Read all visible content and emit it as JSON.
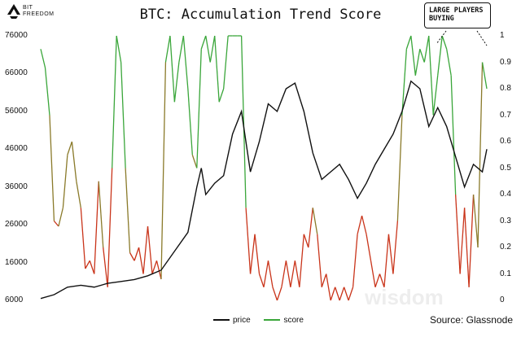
{
  "brand": {
    "logo_icon": "bitfreedom-logo-icon",
    "line1": "BIT",
    "line2": "FREEDOM"
  },
  "annotation": {
    "text": "LARGE PLAYERS BUYING"
  },
  "source": "Source: Glassnode",
  "watermark": "wisdom",
  "colors": {
    "price": "#111111",
    "score_high": "#3aa63a",
    "score_mid": "#8a7a2a",
    "score_low": "#c9341a"
  },
  "chart_data": {
    "type": "line",
    "title": "BTC: Accumulation Trend Score",
    "legend": "bottom-center",
    "grid": false,
    "y_left": {
      "ticks": [
        6000,
        16000,
        26000,
        36000,
        46000,
        56000,
        66000,
        76000
      ],
      "range": [
        6000,
        76000
      ]
    },
    "y_right": {
      "ticks": [
        0,
        0.1,
        0.2,
        0.3,
        0.4,
        0.5,
        0.6,
        0.7,
        0.8,
        0.9,
        1
      ],
      "range": [
        0,
        1
      ]
    },
    "series": [
      {
        "name": "price",
        "axis": "left",
        "x_range": [
          0,
          1
        ],
        "points": [
          [
            0,
            6500
          ],
          [
            0.03,
            7500
          ],
          [
            0.06,
            9500
          ],
          [
            0.09,
            10000
          ],
          [
            0.12,
            9500
          ],
          [
            0.15,
            10500
          ],
          [
            0.18,
            11000
          ],
          [
            0.21,
            11500
          ],
          [
            0.24,
            12500
          ],
          [
            0.27,
            14000
          ],
          [
            0.3,
            19000
          ],
          [
            0.33,
            24000
          ],
          [
            0.35,
            36000
          ],
          [
            0.36,
            41000
          ],
          [
            0.37,
            34000
          ],
          [
            0.39,
            37000
          ],
          [
            0.41,
            39000
          ],
          [
            0.43,
            50000
          ],
          [
            0.45,
            56000
          ],
          [
            0.47,
            40000
          ],
          [
            0.49,
            48000
          ],
          [
            0.51,
            58000
          ],
          [
            0.53,
            56000
          ],
          [
            0.55,
            62000
          ],
          [
            0.57,
            63500
          ],
          [
            0.59,
            56000
          ],
          [
            0.61,
            45000
          ],
          [
            0.63,
            38000
          ],
          [
            0.65,
            40000
          ],
          [
            0.67,
            42000
          ],
          [
            0.69,
            38000
          ],
          [
            0.71,
            33000
          ],
          [
            0.73,
            37000
          ],
          [
            0.75,
            42000
          ],
          [
            0.77,
            46000
          ],
          [
            0.79,
            50000
          ],
          [
            0.81,
            56000
          ],
          [
            0.83,
            64000
          ],
          [
            0.85,
            62000
          ],
          [
            0.87,
            52000
          ],
          [
            0.89,
            57000
          ],
          [
            0.91,
            52000
          ],
          [
            0.93,
            44000
          ],
          [
            0.95,
            36000
          ],
          [
            0.97,
            42000
          ],
          [
            0.99,
            40000
          ],
          [
            1.0,
            46000
          ]
        ]
      },
      {
        "name": "score",
        "axis": "right",
        "x_range": [
          0,
          1
        ],
        "points": [
          [
            0,
            0.95
          ],
          [
            0.01,
            0.88
          ],
          [
            0.02,
            0.7
          ],
          [
            0.03,
            0.3
          ],
          [
            0.04,
            0.28
          ],
          [
            0.05,
            0.35
          ],
          [
            0.06,
            0.55
          ],
          [
            0.07,
            0.6
          ],
          [
            0.08,
            0.45
          ],
          [
            0.09,
            0.35
          ],
          [
            0.1,
            0.12
          ],
          [
            0.11,
            0.15
          ],
          [
            0.12,
            0.1
          ],
          [
            0.13,
            0.45
          ],
          [
            0.14,
            0.2
          ],
          [
            0.15,
            0.05
          ],
          [
            0.16,
            0.5
          ],
          [
            0.17,
            1.0
          ],
          [
            0.18,
            0.9
          ],
          [
            0.19,
            0.5
          ],
          [
            0.2,
            0.18
          ],
          [
            0.21,
            0.15
          ],
          [
            0.22,
            0.2
          ],
          [
            0.23,
            0.1
          ],
          [
            0.24,
            0.28
          ],
          [
            0.25,
            0.1
          ],
          [
            0.26,
            0.15
          ],
          [
            0.27,
            0.08
          ],
          [
            0.28,
            0.9
          ],
          [
            0.29,
            1.0
          ],
          [
            0.3,
            0.75
          ],
          [
            0.31,
            0.9
          ],
          [
            0.32,
            1.0
          ],
          [
            0.33,
            0.8
          ],
          [
            0.34,
            0.55
          ],
          [
            0.35,
            0.5
          ],
          [
            0.36,
            0.95
          ],
          [
            0.37,
            1.0
          ],
          [
            0.38,
            0.9
          ],
          [
            0.39,
            1.0
          ],
          [
            0.4,
            0.75
          ],
          [
            0.41,
            0.8
          ],
          [
            0.42,
            1.0
          ],
          [
            0.43,
            1.0
          ],
          [
            0.44,
            1.0
          ],
          [
            0.45,
            1.0
          ],
          [
            0.46,
            0.35
          ],
          [
            0.47,
            0.1
          ],
          [
            0.48,
            0.25
          ],
          [
            0.49,
            0.1
          ],
          [
            0.5,
            0.05
          ],
          [
            0.51,
            0.15
          ],
          [
            0.52,
            0.05
          ],
          [
            0.53,
            0.0
          ],
          [
            0.54,
            0.05
          ],
          [
            0.55,
            0.15
          ],
          [
            0.56,
            0.05
          ],
          [
            0.57,
            0.15
          ],
          [
            0.58,
            0.05
          ],
          [
            0.59,
            0.25
          ],
          [
            0.6,
            0.2
          ],
          [
            0.61,
            0.35
          ],
          [
            0.62,
            0.25
          ],
          [
            0.63,
            0.05
          ],
          [
            0.64,
            0.1
          ],
          [
            0.65,
            0.0
          ],
          [
            0.66,
            0.05
          ],
          [
            0.67,
            0.0
          ],
          [
            0.68,
            0.05
          ],
          [
            0.69,
            0.0
          ],
          [
            0.7,
            0.05
          ],
          [
            0.71,
            0.25
          ],
          [
            0.72,
            0.32
          ],
          [
            0.73,
            0.25
          ],
          [
            0.74,
            0.15
          ],
          [
            0.75,
            0.05
          ],
          [
            0.76,
            0.1
          ],
          [
            0.77,
            0.05
          ],
          [
            0.78,
            0.25
          ],
          [
            0.79,
            0.1
          ],
          [
            0.8,
            0.3
          ],
          [
            0.81,
            0.7
          ],
          [
            0.82,
            0.95
          ],
          [
            0.83,
            1.0
          ],
          [
            0.84,
            0.85
          ],
          [
            0.85,
            0.95
          ],
          [
            0.86,
            0.9
          ],
          [
            0.87,
            1.0
          ],
          [
            0.88,
            0.7
          ],
          [
            0.89,
            0.85
          ],
          [
            0.9,
            1.0
          ],
          [
            0.91,
            0.95
          ],
          [
            0.92,
            0.85
          ],
          [
            0.93,
            0.4
          ],
          [
            0.94,
            0.1
          ],
          [
            0.95,
            0.35
          ],
          [
            0.96,
            0.05
          ],
          [
            0.97,
            0.4
          ],
          [
            0.98,
            0.2
          ],
          [
            0.99,
            0.9
          ],
          [
            1.0,
            0.8
          ]
        ]
      }
    ]
  }
}
